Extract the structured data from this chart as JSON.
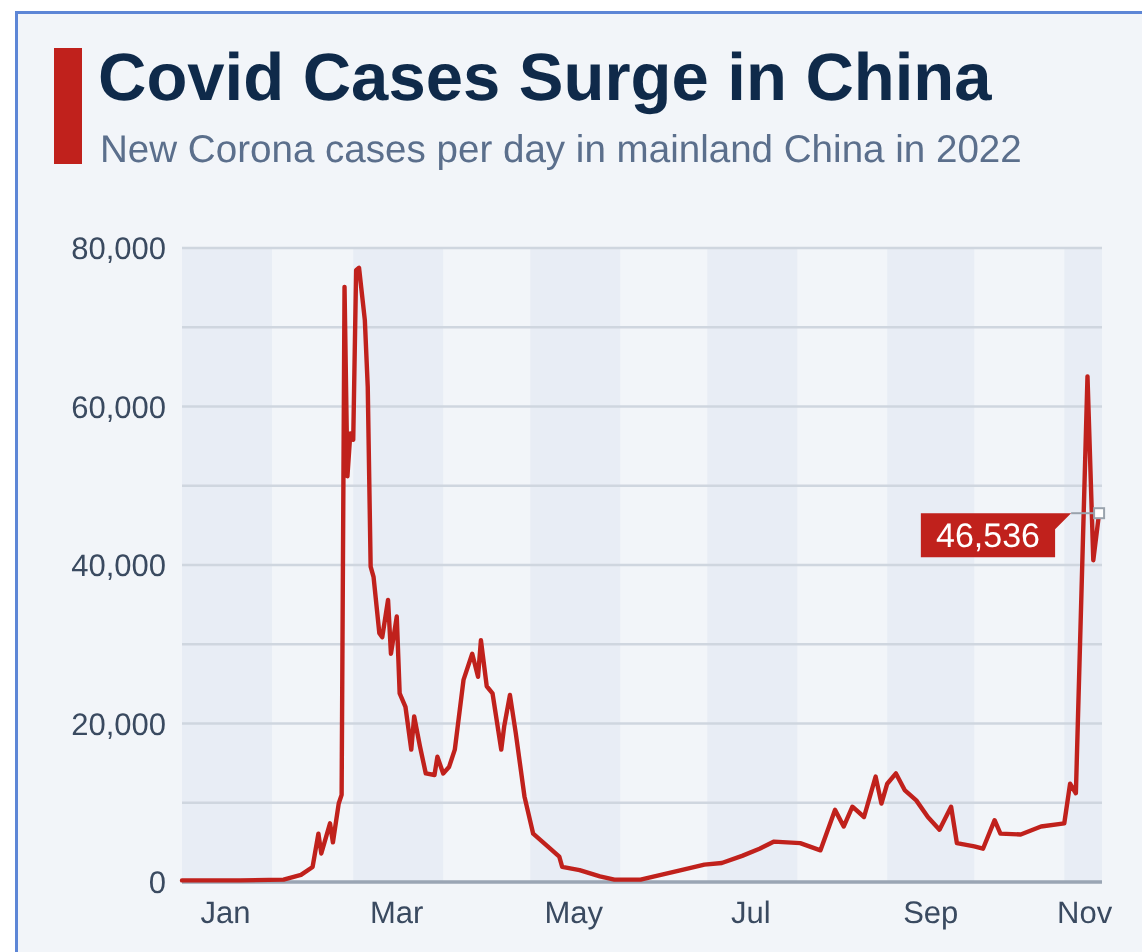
{
  "chart_data": {
    "type": "line",
    "title": "Covid Cases Surge in China",
    "subtitle": "New Corona cases per day in mainland China in 2022",
    "x": [
      "2022-01-01",
      "2022-01-21",
      "2022-02-05",
      "2022-02-11",
      "2022-02-15",
      "2022-02-17",
      "2022-02-18",
      "2022-02-21",
      "2022-02-22",
      "2022-02-24",
      "2022-02-25",
      "2022-02-26",
      "2022-02-27",
      "2022-02-28",
      "2022-03-01",
      "2022-03-02",
      "2022-03-03",
      "2022-03-05",
      "2022-03-06",
      "2022-03-07",
      "2022-03-08",
      "2022-03-10",
      "2022-03-11",
      "2022-03-13",
      "2022-03-14",
      "2022-03-16",
      "2022-03-17",
      "2022-03-19",
      "2022-03-21",
      "2022-03-22",
      "2022-03-24",
      "2022-03-26",
      "2022-03-29",
      "2022-03-30",
      "2022-04-01",
      "2022-04-03",
      "2022-04-05",
      "2022-04-08",
      "2022-04-11",
      "2022-04-13",
      "2022-04-14",
      "2022-04-16",
      "2022-04-18",
      "2022-04-21",
      "2022-04-22",
      "2022-04-24",
      "2022-04-26",
      "2022-04-29",
      "2022-05-02",
      "2022-05-07",
      "2022-05-11",
      "2022-05-12",
      "2022-05-18",
      "2022-05-25",
      "2022-05-30",
      "2022-06-08",
      "2022-06-15",
      "2022-06-22",
      "2022-06-30",
      "2022-07-06",
      "2022-07-13",
      "2022-07-19",
      "2022-07-24",
      "2022-08-02",
      "2022-08-09",
      "2022-08-14",
      "2022-08-17",
      "2022-08-20",
      "2022-08-24",
      "2022-08-28",
      "2022-08-30",
      "2022-09-01",
      "2022-09-04",
      "2022-09-07",
      "2022-09-11",
      "2022-09-15",
      "2022-09-19",
      "2022-09-23",
      "2022-09-25",
      "2022-10-01",
      "2022-10-04",
      "2022-10-08",
      "2022-10-10",
      "2022-10-17",
      "2022-10-24",
      "2022-11-01",
      "2022-11-03",
      "2022-11-05",
      "2022-11-09",
      "2022-11-11",
      "2022-11-13"
    ],
    "series": [
      {
        "color": "#c0211c",
        "values": [
          200,
          200,
          300,
          900,
          1900,
          6100,
          3600,
          7400,
          5000,
          9900,
          11000,
          75100,
          51200,
          56600,
          55800,
          77200,
          77500,
          70900,
          62500,
          39800,
          38500,
          31400,
          30900,
          35600,
          28800,
          33500,
          23800,
          22100,
          16700,
          20900,
          17100,
          13700,
          13500,
          15800,
          13700,
          14500,
          16700,
          25500,
          28800,
          25900,
          30500,
          24700,
          23800,
          16700,
          19600,
          23600,
          18800,
          10800,
          6100,
          4500,
          3200,
          1900,
          1500,
          700,
          300,
          300,
          900,
          1500,
          2200,
          2400,
          3300,
          4200,
          5100,
          4900,
          4000,
          9100,
          7000,
          9500,
          8200,
          13300,
          9900,
          12400,
          13700,
          11600,
          10300,
          8200,
          6600,
          9500,
          4900,
          4500,
          4200,
          7800,
          6100,
          6000,
          7000,
          7400,
          12400,
          11200,
          63800,
          40600,
          46536
        ]
      }
    ],
    "xlim": [
      "2022-01-01",
      "2022-11-14"
    ],
    "xticks": [
      {
        "value": "2022-01-16",
        "label": "Jan"
      },
      {
        "value": "2022-03-16",
        "label": "Mar"
      },
      {
        "value": "2022-05-16",
        "label": "May"
      },
      {
        "value": "2022-07-16",
        "label": "Jul"
      },
      {
        "value": "2022-09-16",
        "label": "Sep"
      },
      {
        "value": "2022-11-08",
        "label": "Nov"
      }
    ],
    "ylim": [
      0,
      80000
    ],
    "yticks": [
      0,
      {
        "value": 10000,
        "label": null
      },
      {
        "value": 20000,
        "label": "20,000"
      },
      {
        "value": 30000,
        "label": null
      },
      {
        "value": 40000,
        "label": "40,000"
      },
      {
        "value": 50000,
        "label": null
      },
      {
        "value": 60000,
        "label": "60,000"
      },
      {
        "value": 70000,
        "label": null
      },
      {
        "value": 80000,
        "label": "80,000"
      }
    ],
    "grid": "y",
    "bands": [
      {
        "axis": "x",
        "from": "2022-01-01",
        "to": "2022-02-01",
        "color": "#e8edf5"
      },
      {
        "axis": "x",
        "from": "2022-03-01",
        "to": "2022-04-01",
        "color": "#e8edf5"
      },
      {
        "axis": "x",
        "from": "2022-05-01",
        "to": "2022-06-01",
        "color": "#e8edf5"
      },
      {
        "axis": "x",
        "from": "2022-07-01",
        "to": "2022-08-01",
        "color": "#e8edf5"
      },
      {
        "axis": "x",
        "from": "2022-09-01",
        "to": "2022-10-01",
        "color": "#e8edf5"
      },
      {
        "axis": "x",
        "from": "2022-11-01",
        "to": "2022-11-14",
        "color": "#e8edf5"
      }
    ],
    "annotations": [
      {
        "text": "46,536",
        "x": "2022-11-13",
        "y": 46536
      }
    ]
  }
}
